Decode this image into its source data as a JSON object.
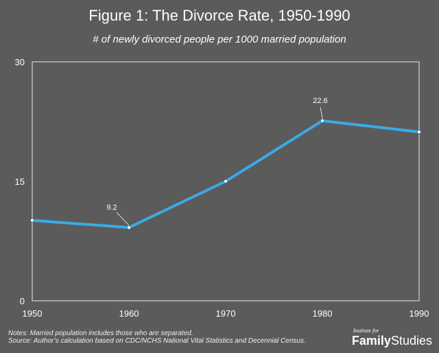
{
  "header": {
    "title": "Figure 1: The Divorce Rate, 1950-1990",
    "subtitle": "# of newly divorced people per 1000 married population"
  },
  "footer": {
    "note_line1": "Notes: Married population includes those who are separated.",
    "note_line2": "Source: Author’s calculation based on CDC/NCHS National Vital Statistics and Decennial Census."
  },
  "brand": {
    "top": "Institute for",
    "word1": "Family",
    "word2": "Studies"
  },
  "colors": {
    "background": "#5b5b5b",
    "line": "#3aabe6",
    "axis": "#e8e8e8"
  },
  "chart_data": {
    "type": "line",
    "title": "Figure 1: The Divorce Rate, 1950-1990",
    "subtitle": "# of newly divorced people per 1000 married population",
    "x": [
      "1950",
      "1960",
      "1970",
      "1980",
      "1990"
    ],
    "series": [
      {
        "values": [
          10.1,
          9.2,
          15.0,
          22.6,
          21.2
        ]
      }
    ],
    "data_labels": [
      {
        "x": "1960",
        "value": 9.2,
        "text": "9.2"
      },
      {
        "x": "1980",
        "value": 22.6,
        "text": "22.6"
      }
    ],
    "yticks": [
      0,
      15,
      30
    ],
    "ylim": [
      0,
      30
    ],
    "grid": false,
    "legend": "none"
  }
}
